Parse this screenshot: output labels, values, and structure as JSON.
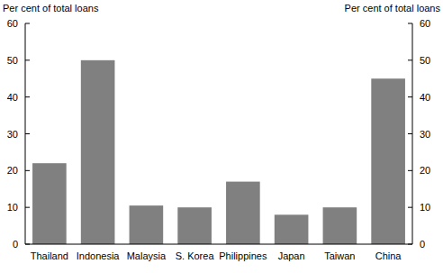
{
  "chart_data": {
    "type": "bar",
    "y_label": "Per cent of total loans",
    "categories": [
      "Thailand",
      "Indonesia",
      "Malaysia",
      "S. Korea",
      "Philippines",
      "Japan",
      "Taiwan",
      "China"
    ],
    "values": [
      22,
      50,
      10.5,
      10,
      17,
      8,
      10,
      45
    ],
    "color": "#808080",
    "ylim": [
      0,
      60
    ],
    "yticks": [
      0,
      10,
      20,
      30,
      40,
      50,
      60
    ],
    "grid": false
  }
}
